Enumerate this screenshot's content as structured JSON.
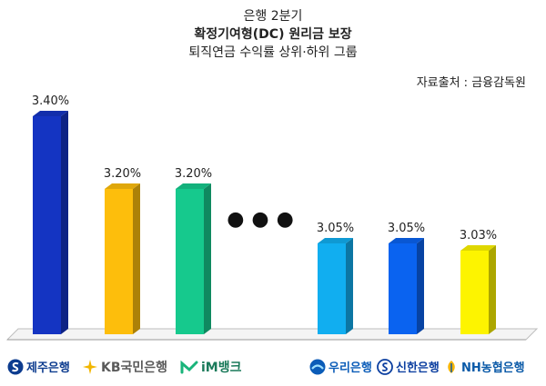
{
  "header": {
    "line1": "은행 2분기",
    "line2": "확정기여형(DC) 원리금 보장",
    "line3": "퇴직연금 수익률 상위·하위 그룹",
    "source": "자료출처 : 금융감독원"
  },
  "chart_data": {
    "type": "bar",
    "categories": [
      "제주은행",
      "KB국민은행",
      "iM뱅크",
      "우리은행",
      "신한은행",
      "NH농협은행"
    ],
    "values": [
      3.4,
      3.2,
      3.2,
      3.05,
      3.05,
      3.03
    ],
    "labels": [
      "3.40%",
      "3.20%",
      "3.20%",
      "3.05%",
      "3.05%",
      "3.03%"
    ],
    "colors": [
      "#1434c2",
      "#fdbe0c",
      "#16c98d",
      "#11aef0",
      "#0a63f0",
      "#fdf400"
    ],
    "ylim": [
      2.8,
      3.45
    ],
    "grid": false,
    "style": "3d",
    "gap_marker": "●●●"
  },
  "logos": [
    {
      "name": "제주은행",
      "icon": "jeju-s-icon",
      "color": "#0d3c8f"
    },
    {
      "name": "KB국민은행",
      "icon": "kb-star-icon",
      "color": "#5a5a5a"
    },
    {
      "name": "iM뱅크",
      "icon": "im-leaf-icon",
      "color": "#1a7a5a"
    },
    {
      "name": "우리은행",
      "icon": "woori-sun-icon",
      "color": "#0b5cb8"
    },
    {
      "name": "신한은행",
      "icon": "shinhan-s-icon",
      "color": "#0c3fa0"
    },
    {
      "name": "NH농협은행",
      "icon": "nh-leaf-icon",
      "color": "#0b5aa8"
    }
  ]
}
